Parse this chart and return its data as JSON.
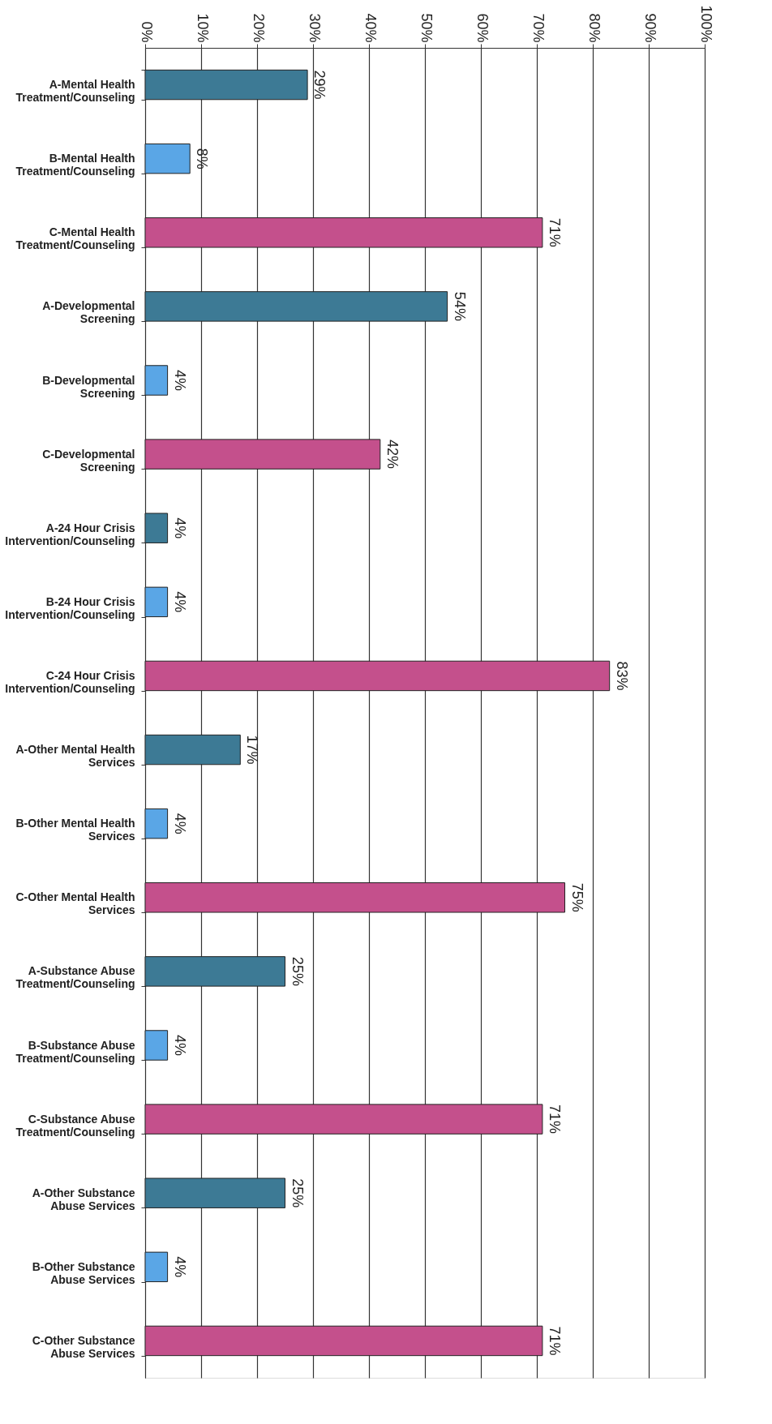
{
  "chart_data": {
    "type": "bar",
    "orientation": "horizontal",
    "categories": [
      "A-Mental Health Treatment/Counseling",
      "B-Mental Health Treatment/Counseling",
      "C-Mental Health Treatment/Counseling",
      "A-Developmental Screening",
      "B-Developmental Screening",
      "C-Developmental Screening",
      "A-24 Hour Crisis Intervention/Counseling",
      "B-24 Hour Crisis Intervention/Counseling",
      "C-24 Hour Crisis Intervention/Counseling",
      "A-Other Mental Health Services",
      "B-Other Mental Health Services",
      "C-Other Mental Health Services",
      "A-Substance Abuse Treatment/Counseling",
      "B-Substance Abuse Treatment/Counseling",
      "C-Substance Abuse Treatment/Counseling",
      "A-Other Substance Abuse Services",
      "B-Other Substance Abuse Services",
      "C-Other Substance Abuse Services"
    ],
    "values": [
      29,
      8,
      71,
      54,
      4,
      42,
      4,
      4,
      83,
      17,
      4,
      75,
      25,
      4,
      71,
      25,
      4,
      71
    ],
    "colors": [
      "#3d7a95",
      "#5aa6e6",
      "#c4508c",
      "#3d7a95",
      "#5aa6e6",
      "#c4508c",
      "#3d7a95",
      "#5aa6e6",
      "#c4508c",
      "#3d7a95",
      "#5aa6e6",
      "#c4508c",
      "#3d7a95",
      "#5aa6e6",
      "#c4508c",
      "#3d7a95",
      "#5aa6e6",
      "#c4508c"
    ],
    "xlim": [
      0,
      100
    ],
    "xticks": [
      {
        "value": 0,
        "label": "0%"
      },
      {
        "value": 10,
        "label": "10%"
      },
      {
        "value": 20,
        "label": "20%"
      },
      {
        "value": 30,
        "label": "30%"
      },
      {
        "value": 40,
        "label": "40%"
      },
      {
        "value": 50,
        "label": "50%"
      },
      {
        "value": 60,
        "label": "60%"
      },
      {
        "value": 70,
        "label": "70%"
      },
      {
        "value": 80,
        "label": "80%"
      },
      {
        "value": 90,
        "label": "90%"
      },
      {
        "value": 100,
        "label": "100%"
      }
    ],
    "value_labels": [
      "29%",
      "8%",
      "71%",
      "54%",
      "4%",
      "42%",
      "4%",
      "4%",
      "83%",
      "17%",
      "4%",
      "75%",
      "25%",
      "4%",
      "71%",
      "25%",
      "4%",
      "71%"
    ],
    "grid": "x"
  }
}
